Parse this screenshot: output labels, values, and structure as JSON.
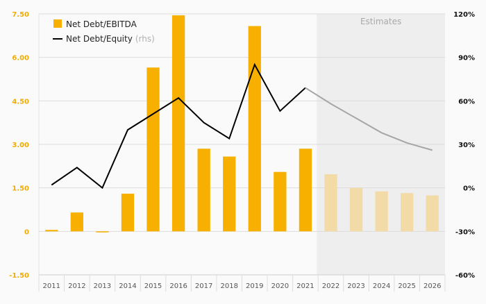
{
  "chart_data": {
    "type": "bar",
    "categories": [
      "2011",
      "2012",
      "2013",
      "2014",
      "2015",
      "2016",
      "2017",
      "2018",
      "2019",
      "2020",
      "2021",
      "2022",
      "2023",
      "2024",
      "2025",
      "2026"
    ],
    "estimates_from": "2022",
    "estimates_label": "Estimates",
    "series": [
      {
        "name": "Net Debt/EBITDA",
        "type": "bar",
        "axis": "left",
        "values": [
          0.05,
          0.65,
          -0.02,
          1.3,
          5.65,
          7.45,
          2.85,
          2.58,
          7.08,
          2.05,
          2.85,
          1.97,
          1.5,
          1.38,
          1.32,
          1.24
        ]
      },
      {
        "name": "Net Debt/Equity",
        "name_suffix": "(rhs)",
        "type": "line",
        "axis": "right",
        "values": [
          2,
          14,
          0,
          40,
          51,
          62,
          45,
          34,
          85,
          53,
          69,
          58,
          48,
          38,
          31,
          26
        ]
      }
    ],
    "y_left": {
      "min": -1.5,
      "max": 7.5,
      "ticks": [
        "7.50",
        "6.00",
        "4.50",
        "3.00",
        "1.50",
        "0",
        "-1.50"
      ],
      "tick_values": [
        7.5,
        6,
        4.5,
        3,
        1.5,
        0,
        -1.5
      ]
    },
    "y_right": {
      "min": -60,
      "max": 120,
      "ticks": [
        "120%",
        "90%",
        "60%",
        "30%",
        "0%",
        "-30%",
        "-60%"
      ],
      "tick_values": [
        120,
        90,
        60,
        30,
        0,
        -30,
        -60
      ]
    },
    "legend_position": "top-left",
    "colors": {
      "bar": "#f8b000",
      "bar_estimate": "#f3dba8",
      "line": "#000000",
      "line_estimate": "#a6a6a6",
      "shade": "#eeeeee",
      "left_tick": "#f0ac00",
      "grid": "#dcdcdc",
      "muted": "#b0b0b0"
    }
  }
}
